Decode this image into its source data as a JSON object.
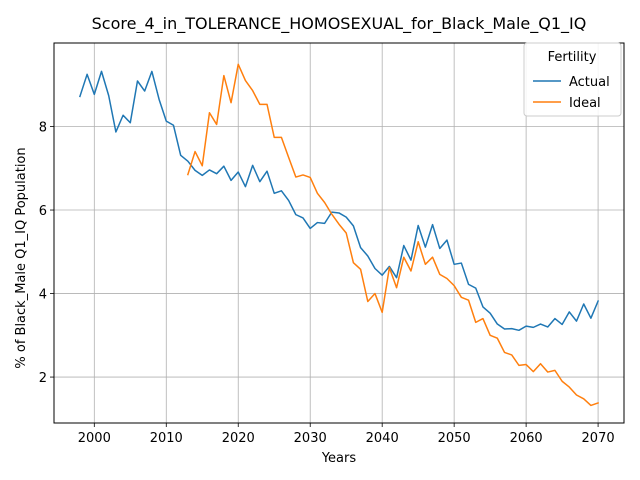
{
  "chart_data": {
    "type": "line",
    "title": "Score_4_in_TOLERANCE_HOMOSEXUAL_for_Black_Male_Q1_IQ",
    "xlabel": "Years",
    "ylabel": "% of Black_Male Q1_IQ Population",
    "xlim": [
      1994.4,
      2073.6
    ],
    "ylim": [
      0.9,
      10.0
    ],
    "xticks": [
      2000,
      2010,
      2020,
      2030,
      2040,
      2050,
      2060,
      2070
    ],
    "yticks": [
      2,
      4,
      6,
      8
    ],
    "grid": true,
    "legend": {
      "title": "Fertility",
      "placement": "top-right"
    },
    "series": [
      {
        "name": "Actual",
        "color": "#1f77b4",
        "x": [
          1998,
          1999,
          2000,
          2001,
          2002,
          2003,
          2004,
          2005,
          2006,
          2007,
          2008,
          2009,
          2010,
          2011,
          2012,
          2013,
          2014,
          2015,
          2016,
          2017,
          2018,
          2019,
          2020,
          2021,
          2022,
          2023,
          2024,
          2025,
          2026,
          2027,
          2028,
          2029,
          2030,
          2031,
          2032,
          2033,
          2034,
          2035,
          2036,
          2037,
          2038,
          2039,
          2040,
          2041,
          2042,
          2043,
          2044,
          2045,
          2046,
          2047,
          2048,
          2049,
          2050,
          2051,
          2052,
          2053,
          2054,
          2055,
          2056,
          2057,
          2058,
          2059,
          2060,
          2061,
          2062,
          2063,
          2064,
          2065,
          2066,
          2067,
          2068,
          2069,
          2070
        ],
        "y": [
          8.72,
          9.25,
          8.77,
          9.32,
          8.74,
          7.87,
          8.27,
          8.09,
          9.09,
          8.85,
          9.32,
          8.65,
          8.13,
          8.03,
          7.31,
          7.17,
          6.95,
          6.83,
          6.96,
          6.87,
          7.05,
          6.71,
          6.91,
          6.56,
          7.07,
          6.68,
          6.93,
          6.4,
          6.46,
          6.23,
          5.89,
          5.81,
          5.56,
          5.7,
          5.68,
          5.95,
          5.93,
          5.83,
          5.62,
          5.1,
          4.9,
          4.6,
          4.44,
          4.65,
          4.38,
          5.15,
          4.8,
          5.63,
          5.11,
          5.65,
          5.08,
          5.28,
          4.7,
          4.73,
          4.22,
          4.13,
          3.68,
          3.53,
          3.27,
          3.15,
          3.16,
          3.12,
          3.22,
          3.19,
          3.27,
          3.2,
          3.4,
          3.26,
          3.56,
          3.34,
          3.75,
          3.41,
          3.82
        ]
      },
      {
        "name": "Ideal",
        "color": "#ff7f0e",
        "x": [
          2013,
          2014,
          2015,
          2016,
          2017,
          2018,
          2019,
          2020,
          2021,
          2022,
          2023,
          2024,
          2025,
          2026,
          2027,
          2028,
          2029,
          2030,
          2031,
          2032,
          2033,
          2034,
          2035,
          2036,
          2037,
          2038,
          2039,
          2040,
          2041,
          2042,
          2043,
          2044,
          2045,
          2046,
          2047,
          2048,
          2049,
          2050,
          2051,
          2052,
          2053,
          2054,
          2055,
          2056,
          2057,
          2058,
          2059,
          2060,
          2061,
          2062,
          2063,
          2064,
          2065,
          2066,
          2067,
          2068,
          2069,
          2070
        ],
        "y": [
          6.85,
          7.4,
          7.06,
          8.33,
          8.05,
          9.22,
          8.57,
          9.49,
          9.1,
          8.86,
          8.53,
          8.53,
          7.74,
          7.74,
          7.26,
          6.79,
          6.84,
          6.78,
          6.4,
          6.18,
          5.9,
          5.66,
          5.45,
          4.74,
          4.58,
          3.81,
          4.0,
          3.55,
          4.62,
          4.14,
          4.87,
          4.54,
          5.24,
          4.7,
          4.87,
          4.46,
          4.36,
          4.19,
          3.91,
          3.84,
          3.31,
          3.4,
          3.0,
          2.93,
          2.59,
          2.53,
          2.28,
          2.3,
          2.13,
          2.32,
          2.12,
          2.16,
          1.9,
          1.76,
          1.57,
          1.48,
          1.32,
          1.38
        ]
      }
    ]
  }
}
